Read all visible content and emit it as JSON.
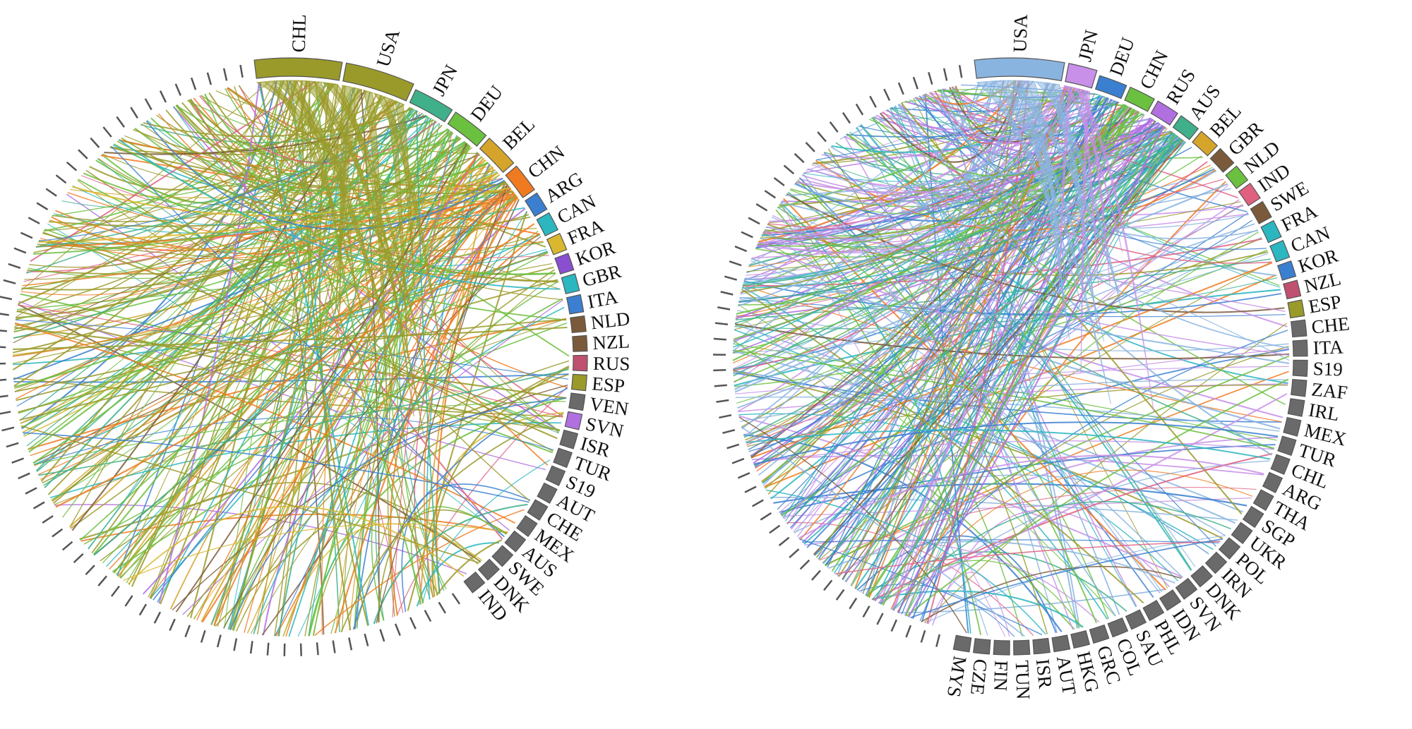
{
  "diagrams": [
    {
      "id": "left",
      "segments": [
        {
          "label": "CHL",
          "size": 5,
          "color": "#9a9a2a"
        },
        {
          "label": "USA",
          "size": 4,
          "color": "#9a9a2a"
        },
        {
          "label": "JPN",
          "size": 2.4,
          "color": "#3fb08a"
        },
        {
          "label": "DEU",
          "size": 2.2,
          "color": "#6cc040"
        },
        {
          "label": "BEL",
          "size": 2.0,
          "color": "#d4a52a"
        },
        {
          "label": "CHN",
          "size": 1.7,
          "color": "#f07a20"
        },
        {
          "label": "ARG",
          "size": 1.1,
          "color": "#3a7fd0"
        },
        {
          "label": "CAN",
          "size": 1.1,
          "color": "#2bb6c0"
        },
        {
          "label": "FRA",
          "size": 1.0,
          "color": "#d9b830"
        },
        {
          "label": "KOR",
          "size": 1.0,
          "color": "#8a4fd0"
        },
        {
          "label": "GBR",
          "size": 1.0,
          "color": "#2bb6c0"
        },
        {
          "label": "ITA",
          "size": 1.0,
          "color": "#3a7fd0"
        },
        {
          "label": "NLD",
          "size": 0.9,
          "color": "#7a5a3a"
        },
        {
          "label": "NZL",
          "size": 0.9,
          "color": "#7a5a3a"
        },
        {
          "label": "RUS",
          "size": 0.9,
          "color": "#c05070"
        },
        {
          "label": "ESP",
          "size": 0.9,
          "color": "#9a9a2a"
        },
        {
          "label": "VEN",
          "size": 0.9,
          "color": "#6a6a6a"
        },
        {
          "label": "SVN",
          "size": 0.9,
          "color": "#b070e0"
        },
        {
          "label": "ISR",
          "size": 0.9,
          "color": "#6a6a6a"
        },
        {
          "label": "TUR",
          "size": 0.9,
          "color": "#6a6a6a"
        },
        {
          "label": "S19",
          "size": 0.9,
          "color": "#6a6a6a"
        },
        {
          "label": "AUT",
          "size": 0.9,
          "color": "#6a6a6a"
        },
        {
          "label": "CHE",
          "size": 0.9,
          "color": "#6a6a6a"
        },
        {
          "label": "MEX",
          "size": 0.9,
          "color": "#6a6a6a"
        },
        {
          "label": "AUS",
          "size": 0.9,
          "color": "#6a6a6a"
        },
        {
          "label": "SWE",
          "size": 0.9,
          "color": "#6a6a6a"
        },
        {
          "label": "DNK",
          "size": 0.9,
          "color": "#6a6a6a"
        },
        {
          "label": "IND",
          "size": 0.9,
          "color": "#6a6a6a"
        }
      ],
      "unlabeled_ticks": 78,
      "chord_palette": [
        "#9a9a2a",
        "#6cc040",
        "#f07a20",
        "#3a7fd0",
        "#2bb6c0",
        "#b070e0",
        "#d9b830",
        "#7a5a3a",
        "#e06080",
        "#3fb08a"
      ],
      "chord_weights": [
        7,
        3,
        2,
        2,
        2,
        1,
        1,
        1,
        1,
        1
      ],
      "chord_count": 340
    },
    {
      "id": "right",
      "segments": [
        {
          "label": "USA",
          "size": 5,
          "color": "#8ab4e0"
        },
        {
          "label": "JPN",
          "size": 1.6,
          "color": "#c890e8"
        },
        {
          "label": "DEU",
          "size": 1.6,
          "color": "#3a7fd0"
        },
        {
          "label": "CHN",
          "size": 1.5,
          "color": "#6cc040"
        },
        {
          "label": "RUS",
          "size": 1.3,
          "color": "#b070e0"
        },
        {
          "label": "AUS",
          "size": 1.2,
          "color": "#3fb08a"
        },
        {
          "label": "BEL",
          "size": 1.2,
          "color": "#d4a52a"
        },
        {
          "label": "GBR",
          "size": 1.1,
          "color": "#7a5a3a"
        },
        {
          "label": "NLD",
          "size": 1.0,
          "color": "#6cc040"
        },
        {
          "label": "IND",
          "size": 1.0,
          "color": "#e06080"
        },
        {
          "label": "SWE",
          "size": 1.0,
          "color": "#7a5a3a"
        },
        {
          "label": "FRA",
          "size": 1.0,
          "color": "#2bb6c0"
        },
        {
          "label": "CAN",
          "size": 1.0,
          "color": "#2bb6c0"
        },
        {
          "label": "KOR",
          "size": 0.9,
          "color": "#3a7fd0"
        },
        {
          "label": "NZL",
          "size": 0.9,
          "color": "#c05070"
        },
        {
          "label": "ESP",
          "size": 0.9,
          "color": "#9a9a2a"
        },
        {
          "label": "CHE",
          "size": 0.9,
          "color": "#6a6a6a"
        },
        {
          "label": "ITA",
          "size": 0.9,
          "color": "#6a6a6a"
        },
        {
          "label": "S19",
          "size": 0.9,
          "color": "#6a6a6a"
        },
        {
          "label": "ZAF",
          "size": 0.9,
          "color": "#6a6a6a"
        },
        {
          "label": "IRL",
          "size": 0.9,
          "color": "#6a6a6a"
        },
        {
          "label": "MEX",
          "size": 0.9,
          "color": "#6a6a6a"
        },
        {
          "label": "TUR",
          "size": 0.9,
          "color": "#6a6a6a"
        },
        {
          "label": "CHL",
          "size": 0.9,
          "color": "#6a6a6a"
        },
        {
          "label": "ARG",
          "size": 0.9,
          "color": "#6a6a6a"
        },
        {
          "label": "THA",
          "size": 0.9,
          "color": "#6a6a6a"
        },
        {
          "label": "SGP",
          "size": 0.9,
          "color": "#6a6a6a"
        },
        {
          "label": "UKR",
          "size": 0.9,
          "color": "#6a6a6a"
        },
        {
          "label": "POL",
          "size": 0.9,
          "color": "#6a6a6a"
        },
        {
          "label": "IRN",
          "size": 0.9,
          "color": "#6a6a6a"
        },
        {
          "label": "DNK",
          "size": 0.9,
          "color": "#6a6a6a"
        },
        {
          "label": "SVN",
          "size": 0.9,
          "color": "#6a6a6a"
        },
        {
          "label": "IDN",
          "size": 0.9,
          "color": "#6a6a6a"
        },
        {
          "label": "PHL",
          "size": 0.9,
          "color": "#6a6a6a"
        },
        {
          "label": "SAU",
          "size": 0.9,
          "color": "#6a6a6a"
        },
        {
          "label": "COL",
          "size": 0.9,
          "color": "#6a6a6a"
        },
        {
          "label": "GRC",
          "size": 0.9,
          "color": "#6a6a6a"
        },
        {
          "label": "HKG",
          "size": 0.9,
          "color": "#6a6a6a"
        },
        {
          "label": "AUT",
          "size": 0.9,
          "color": "#6a6a6a"
        },
        {
          "label": "ISR",
          "size": 0.9,
          "color": "#6a6a6a"
        },
        {
          "label": "TUN",
          "size": 0.9,
          "color": "#6a6a6a"
        },
        {
          "label": "FIN",
          "size": 0.9,
          "color": "#6a6a6a"
        },
        {
          "label": "CZE",
          "size": 0.9,
          "color": "#6a6a6a"
        },
        {
          "label": "MYS",
          "size": 0.9,
          "color": "#6a6a6a"
        }
      ],
      "unlabeled_ticks": 72,
      "chord_palette": [
        "#8ab4e0",
        "#3a7fd0",
        "#c890e8",
        "#6cc040",
        "#f07a20",
        "#2bb6c0",
        "#9a9a2a",
        "#7a5a3a",
        "#e06080",
        "#3fb08a"
      ],
      "chord_weights": [
        5,
        3,
        3,
        3,
        2,
        2,
        2,
        1,
        1,
        1
      ],
      "chord_count": 400
    }
  ]
}
